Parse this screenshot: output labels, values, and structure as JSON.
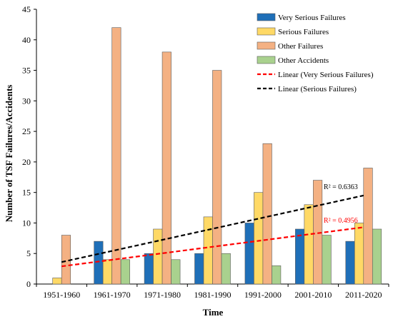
{
  "chart_data": {
    "type": "bar",
    "title": "",
    "xlabel": "Time",
    "ylabel": "Number of TSF Failures/Accidents",
    "ylim": [
      0,
      45
    ],
    "yticks": [
      0,
      5,
      10,
      15,
      20,
      25,
      30,
      35,
      40,
      45
    ],
    "grid": false,
    "legend_position": "top-right",
    "categories": [
      "1951-1960",
      "1961-1970",
      "1971-1980",
      "1981-1990",
      "1991-2000",
      "2001-2010",
      "2011-2020"
    ],
    "series": [
      {
        "name": "Very Serious Failures",
        "color": "#1f6fb8",
        "values": [
          0,
          7,
          5,
          5,
          10,
          9,
          7
        ]
      },
      {
        "name": "Serious Failures",
        "color": "#ffd966",
        "values": [
          1,
          4,
          9,
          11,
          15,
          13,
          10
        ]
      },
      {
        "name": "Other Failures",
        "color": "#f4b183",
        "values": [
          8,
          42,
          38,
          35,
          23,
          17,
          19
        ]
      },
      {
        "name": "Other Accidents",
        "color": "#a9d18e",
        "values": [
          0,
          4,
          4,
          5,
          3,
          8,
          9
        ]
      }
    ],
    "trendlines": [
      {
        "name": "Linear (Very Serious Failures)",
        "color": "#ff0000",
        "start": 2.9,
        "end": 9.3,
        "r2_label": "R² = 0.4956"
      },
      {
        "name": "Linear (Serious Failures)",
        "color": "#000000",
        "start": 3.6,
        "end": 14.5,
        "r2_label": "R² = 0.6363"
      }
    ]
  }
}
